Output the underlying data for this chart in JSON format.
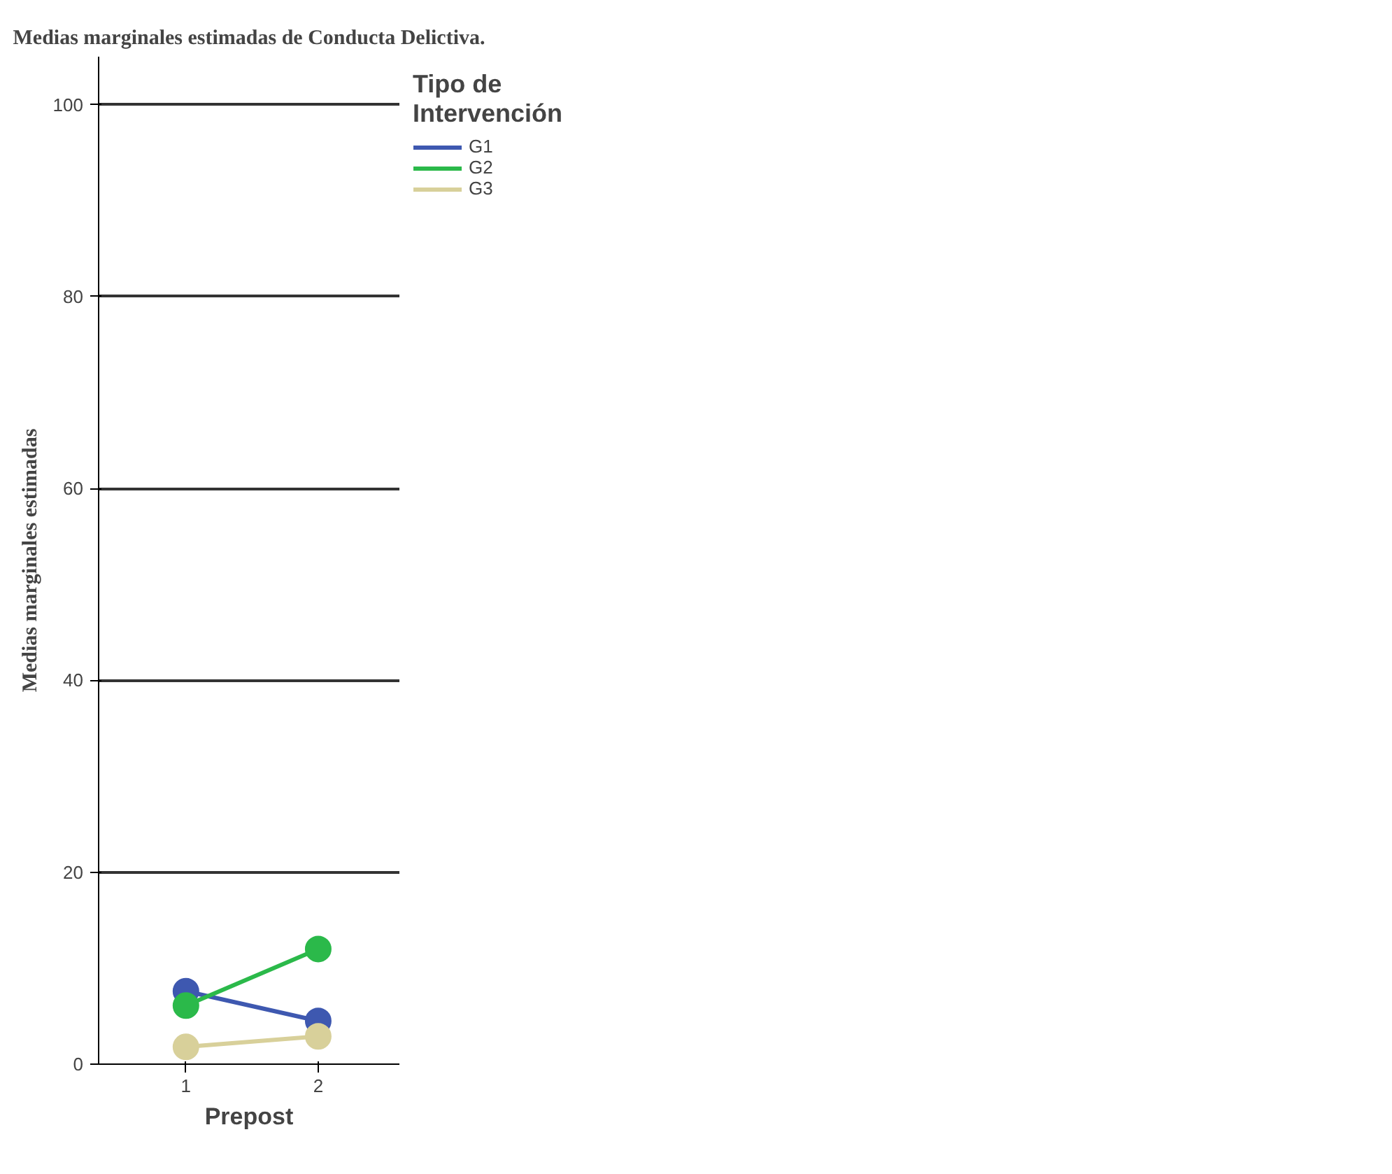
{
  "chart_data": {
    "type": "line",
    "title": "Medias marginales estimadas de Conducta Delictiva.",
    "xlabel": "Prepost",
    "ylabel": "Medias marginales estimadas",
    "legend_title": "Tipo de\nIntervención",
    "categories": [
      "1",
      "2"
    ],
    "series": [
      {
        "name": "G1",
        "color": "#3e58b0",
        "values": [
          7.6,
          4.5
        ]
      },
      {
        "name": "G2",
        "color": "#2bb94a",
        "values": [
          6.1,
          12.0
        ]
      },
      {
        "name": "G3",
        "color": "#d8d09a",
        "values": [
          1.8,
          2.9
        ]
      }
    ],
    "ylim": [
      0,
      105
    ],
    "yticks": [
      0,
      20,
      40,
      60,
      80,
      100
    ],
    "grid": "y",
    "legend": "right",
    "marker": "circle",
    "line_style": "solid"
  }
}
